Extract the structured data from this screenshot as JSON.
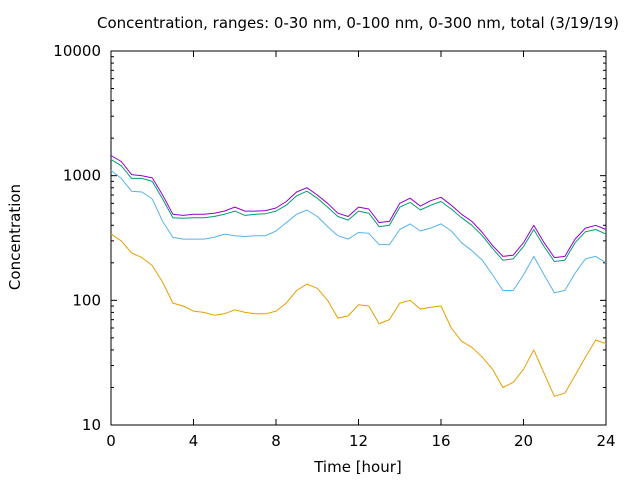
{
  "chart_data": {
    "type": "line",
    "title": "Concentration, ranges: 0-30 nm, 0-100 nm, 0-300 nm, total (3/19/19)",
    "xlabel": "Time [hour]",
    "ylabel": "Concentration",
    "xlim": [
      0,
      24
    ],
    "ylim": [
      10,
      10000
    ],
    "yscale": "log",
    "x_ticks": [
      "0",
      "4",
      "8",
      "12",
      "16",
      "20",
      "24"
    ],
    "y_ticks": [
      "10",
      "100",
      "1000",
      "10000"
    ],
    "grid": false,
    "legend": "none",
    "series": [
      {
        "color": "#e69f00",
        "x": [
          0,
          0.5,
          1,
          1.5,
          2,
          2.5,
          3,
          3.5,
          4,
          4.5,
          5,
          5.5,
          6,
          6.5,
          7,
          7.5,
          8,
          8.5,
          9,
          9.5,
          10,
          10.5,
          11,
          11.5,
          12,
          12.5,
          13,
          13.5,
          14,
          14.5,
          15,
          15.5,
          16,
          16.5,
          17,
          17.5,
          18,
          18.5,
          19,
          19.5,
          20,
          20.5,
          21,
          21.5,
          22,
          22.5,
          23,
          23.5,
          24
        ],
        "y": [
          340,
          300,
          240,
          220,
          190,
          140,
          95,
          90,
          82,
          80,
          76,
          78,
          84,
          80,
          78,
          78,
          82,
          95,
          120,
          135,
          125,
          100,
          72,
          75,
          92,
          90,
          65,
          70,
          95,
          100,
          85,
          88,
          90,
          60,
          47,
          42,
          35,
          28,
          20,
          22,
          28,
          40,
          26,
          17,
          18,
          25,
          35,
          48,
          45
        ]
      },
      {
        "color": "#56b4e9",
        "x": [
          0,
          0.5,
          1,
          1.5,
          2,
          2.5,
          3,
          3.5,
          4,
          4.5,
          5,
          5.5,
          6,
          6.5,
          7,
          7.5,
          8,
          8.5,
          9,
          9.5,
          10,
          10.5,
          11,
          11.5,
          12,
          12.5,
          13,
          13.5,
          14,
          14.5,
          15,
          15.5,
          16,
          16.5,
          17,
          17.5,
          18,
          18.5,
          19,
          19.5,
          20,
          20.5,
          21,
          21.5,
          22,
          22.5,
          23,
          23.5,
          24
        ],
        "y": [
          1100,
          950,
          750,
          740,
          650,
          430,
          320,
          310,
          310,
          310,
          320,
          340,
          330,
          325,
          330,
          330,
          360,
          420,
          490,
          530,
          470,
          390,
          330,
          310,
          350,
          345,
          280,
          280,
          370,
          410,
          360,
          380,
          410,
          360,
          290,
          250,
          210,
          160,
          120,
          120,
          160,
          225,
          160,
          115,
          120,
          165,
          215,
          225,
          200
        ]
      },
      {
        "color": "#009e73",
        "x": [
          0,
          0.5,
          1,
          1.5,
          2,
          2.5,
          3,
          3.5,
          4,
          4.5,
          5,
          5.5,
          6,
          6.5,
          7,
          7.5,
          8,
          8.5,
          9,
          9.5,
          10,
          10.5,
          11,
          11.5,
          12,
          12.5,
          13,
          13.5,
          14,
          14.5,
          15,
          15.5,
          16,
          16.5,
          17,
          17.5,
          18,
          18.5,
          19,
          19.5,
          20,
          20.5,
          21,
          21.5,
          22,
          22.5,
          23,
          23.5,
          24
        ],
        "y": [
          1350,
          1200,
          950,
          950,
          900,
          650,
          460,
          455,
          460,
          460,
          470,
          490,
          520,
          480,
          490,
          495,
          520,
          580,
          690,
          750,
          660,
          560,
          470,
          440,
          520,
          500,
          390,
          400,
          560,
          610,
          530,
          580,
          620,
          540,
          460,
          400,
          330,
          260,
          210,
          215,
          270,
          370,
          270,
          205,
          210,
          290,
          355,
          370,
          340
        ]
      },
      {
        "color": "#9400d3",
        "x": [
          0,
          0.5,
          1,
          1.5,
          2,
          2.5,
          3,
          3.5,
          4,
          4.5,
          5,
          5.5,
          6,
          6.5,
          7,
          7.5,
          8,
          8.5,
          9,
          9.5,
          10,
          10.5,
          11,
          11.5,
          12,
          12.5,
          13,
          13.5,
          14,
          14.5,
          15,
          15.5,
          16,
          16.5,
          17,
          17.5,
          18,
          18.5,
          19,
          19.5,
          20,
          20.5,
          21,
          21.5,
          22,
          22.5,
          23,
          23.5,
          24
        ],
        "y": [
          1450,
          1300,
          1020,
          1000,
          960,
          700,
          490,
          480,
          490,
          490,
          500,
          520,
          560,
          520,
          520,
          525,
          550,
          620,
          740,
          800,
          700,
          600,
          500,
          470,
          560,
          540,
          420,
          430,
          600,
          660,
          570,
          630,
          670,
          580,
          490,
          430,
          350,
          275,
          225,
          230,
          290,
          400,
          290,
          220,
          225,
          310,
          380,
          400,
          370
        ]
      }
    ]
  }
}
